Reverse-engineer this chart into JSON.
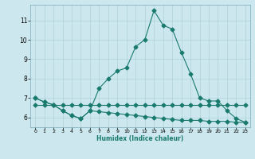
{
  "xlabel": "Humidex (Indice chaleur)",
  "ylabel": "",
  "bg_color": "#cce8ee",
  "line_color": "#1a7a6e",
  "xlim": [
    -0.5,
    23.5
  ],
  "ylim": [
    5.5,
    11.8
  ],
  "xticks": [
    0,
    1,
    2,
    3,
    4,
    5,
    6,
    7,
    8,
    9,
    10,
    11,
    12,
    13,
    14,
    15,
    16,
    17,
    18,
    19,
    20,
    21,
    22,
    23
  ],
  "yticks": [
    6,
    7,
    8,
    9,
    10,
    11
  ],
  "line1_x": [
    0,
    1,
    2,
    3,
    4,
    5,
    6,
    7,
    8,
    9,
    10,
    11,
    12,
    13,
    14,
    15,
    16,
    17,
    18,
    19,
    20,
    21,
    22,
    23
  ],
  "line1_y": [
    7.0,
    6.8,
    6.65,
    6.35,
    6.1,
    5.95,
    6.35,
    7.5,
    8.0,
    8.4,
    8.55,
    9.65,
    10.0,
    11.5,
    10.75,
    10.55,
    9.35,
    8.25,
    7.0,
    6.85,
    6.85,
    6.35,
    5.95,
    5.75
  ],
  "line2_x": [
    0,
    1,
    2,
    3,
    4,
    5,
    6,
    7,
    8,
    9,
    10,
    11,
    12,
    13,
    14,
    15,
    16,
    17,
    18,
    19,
    20,
    21,
    22,
    23
  ],
  "line2_y": [
    6.65,
    6.65,
    6.65,
    6.65,
    6.65,
    6.65,
    6.65,
    6.65,
    6.65,
    6.65,
    6.65,
    6.65,
    6.65,
    6.65,
    6.65,
    6.65,
    6.65,
    6.65,
    6.65,
    6.65,
    6.65,
    6.65,
    6.65,
    6.65
  ],
  "line3_x": [
    0,
    1,
    2,
    3,
    4,
    5,
    6,
    7,
    8,
    9,
    10,
    11,
    12,
    13,
    14,
    15,
    16,
    17,
    18,
    19,
    20,
    21,
    22,
    23
  ],
  "line3_y": [
    7.0,
    6.8,
    6.65,
    6.35,
    6.1,
    5.95,
    6.35,
    6.3,
    6.25,
    6.2,
    6.15,
    6.1,
    6.05,
    6.0,
    5.95,
    5.9,
    5.85,
    5.85,
    5.85,
    5.8,
    5.8,
    5.8,
    5.75,
    5.75
  ]
}
